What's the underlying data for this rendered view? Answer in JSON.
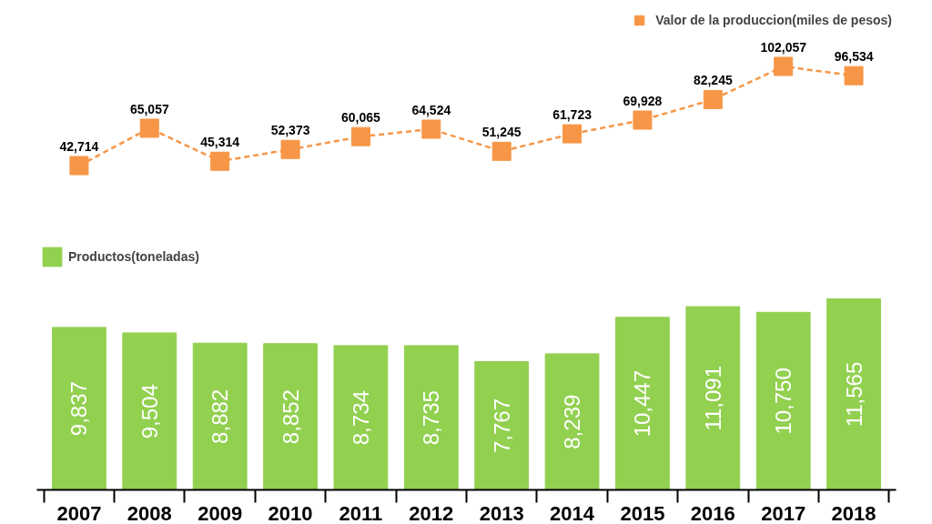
{
  "chart_data": [
    {
      "type": "line",
      "categories": [
        "2007",
        "2008",
        "2009",
        "2010",
        "2011",
        "2012",
        "2013",
        "2014",
        "2015",
        "2016",
        "2017",
        "2018"
      ],
      "tick_labels": false,
      "series": [
        {
          "name": "Valor de la produccion(miles de pesos)",
          "color": "#f79646",
          "values": [
            42714,
            65057,
            45314,
            52373,
            60065,
            64524,
            51245,
            61723,
            69928,
            82245,
            102057,
            96534
          ],
          "value_labels": [
            "42,714",
            "65,057",
            "45,314",
            "52,373",
            "60,065",
            "64,524",
            "51,245",
            "61,723",
            "69,928",
            "82,245",
            "102,057",
            "96,534"
          ]
        }
      ],
      "marker": "square",
      "line_style": "dashed",
      "legend": "top right",
      "grid": false
    },
    {
      "type": "bar",
      "categories": [
        "2007",
        "2008",
        "2009",
        "2010",
        "2011",
        "2012",
        "2013",
        "2014",
        "2015",
        "2016",
        "2017",
        "2018"
      ],
      "tick_labels": "x",
      "series": [
        {
          "name": "Productos(toneladas)",
          "color": "#92d050",
          "values": [
            9837,
            9504,
            8882,
            8852,
            8734,
            8735,
            7767,
            8239,
            10447,
            11091,
            10750,
            11565
          ],
          "value_labels": [
            "9,837",
            "9,504",
            "8,882",
            "8,852",
            "8,734",
            "8,735",
            "7,767",
            "8,239",
            "10,447",
            "11,091",
            "10,750",
            "11,565"
          ]
        }
      ],
      "legend": "top left",
      "grid": false
    }
  ]
}
